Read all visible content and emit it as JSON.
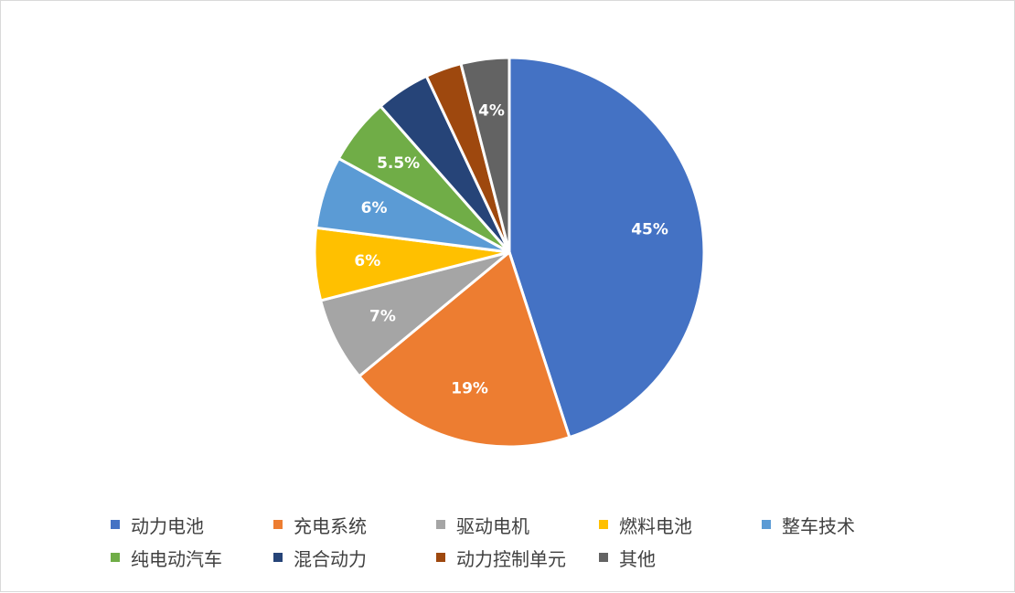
{
  "chart_data": {
    "type": "pie",
    "title": "",
    "slices": [
      {
        "name": "动力电池",
        "value": 45,
        "label": "45%",
        "color": "#4472C4"
      },
      {
        "name": "充电系统",
        "value": 19,
        "label": "19%",
        "color": "#ED7D31"
      },
      {
        "name": "驱动电机",
        "value": 7,
        "label": "7%",
        "color": "#A5A5A5"
      },
      {
        "name": "燃料电池",
        "value": 6,
        "label": "6%",
        "color": "#FFC000"
      },
      {
        "name": "整车技术",
        "value": 6,
        "label": "6%",
        "color": "#5B9BD5"
      },
      {
        "name": "纯电动汽车",
        "value": 5.5,
        "label": "5.5%",
        "color": "#70AD47"
      },
      {
        "name": "混合动力",
        "value": 4.5,
        "label": "",
        "color": "#264478"
      },
      {
        "name": "动力控制单元",
        "value": 3,
        "label": "",
        "color": "#9E480E"
      },
      {
        "name": "其他",
        "value": 4,
        "label": "4%",
        "color": "#636363"
      }
    ],
    "start_angle_deg": 0,
    "direction": "clockwise",
    "legend_position": "bottom"
  }
}
